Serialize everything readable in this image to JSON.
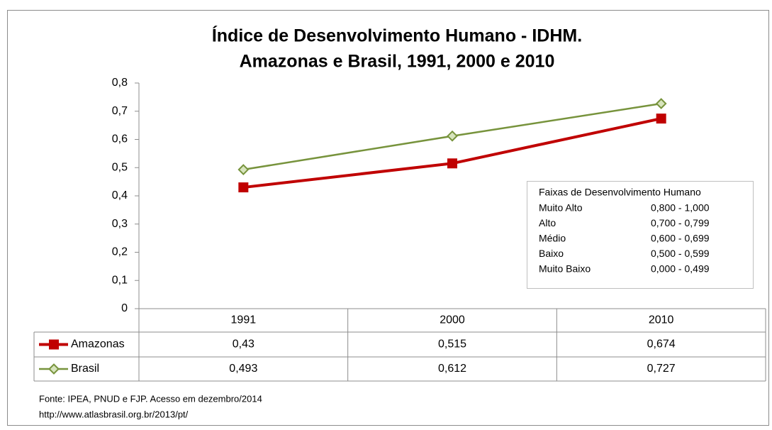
{
  "chart_data": {
    "type": "line",
    "title": "Índice de Desenvolvimento Humano - IDHM.",
    "subtitle": "Amazonas e Brasil, 1991, 2000 e 2010",
    "categories": [
      "1991",
      "2000",
      "2010"
    ],
    "series": [
      {
        "name": "Amazonas",
        "color": "#c00000",
        "marker": "square",
        "values": [
          0.43,
          0.515,
          0.674
        ],
        "value_labels": [
          "0,43",
          "0,515",
          "0,674"
        ]
      },
      {
        "name": "Brasil",
        "color": "#77933c",
        "marker": "diamond",
        "values": [
          0.493,
          0.612,
          0.727
        ],
        "value_labels": [
          "0,493",
          "0,612",
          "0,727"
        ]
      }
    ],
    "ylim": [
      0,
      0.8
    ],
    "yticks": [
      0,
      {
        "value": 0.1,
        "label": "0,1"
      },
      {
        "value": 0.2,
        "label": "0,2"
      },
      {
        "value": 0.3,
        "label": "0,3"
      },
      {
        "value": 0.4,
        "label": "0,4"
      },
      {
        "value": 0.5,
        "label": "0,5"
      },
      {
        "value": 0.6,
        "label": "0,6"
      },
      {
        "value": 0.7,
        "label": "0,7"
      },
      {
        "value": 0.8,
        "label": "0,8"
      }
    ],
    "grid": false,
    "annotation_table": {
      "title": "Faixas de Desenvolvimento Humano",
      "rows": [
        [
          "Muito Alto",
          "0,800 - 1,000"
        ],
        [
          "Alto",
          "0,700 - 0,799"
        ],
        [
          "Médio",
          "0,600 - 0,699"
        ],
        [
          "Baixo",
          "0,500 - 0,599"
        ],
        [
          "Muito Baixo",
          "0,000 - 0,499"
        ]
      ]
    },
    "source": [
      "Fonte: IPEA, PNUD e FJP. Acesso em dezembro/2014",
      "http://www.atlasbrasil.org.br/2013/pt/"
    ]
  }
}
